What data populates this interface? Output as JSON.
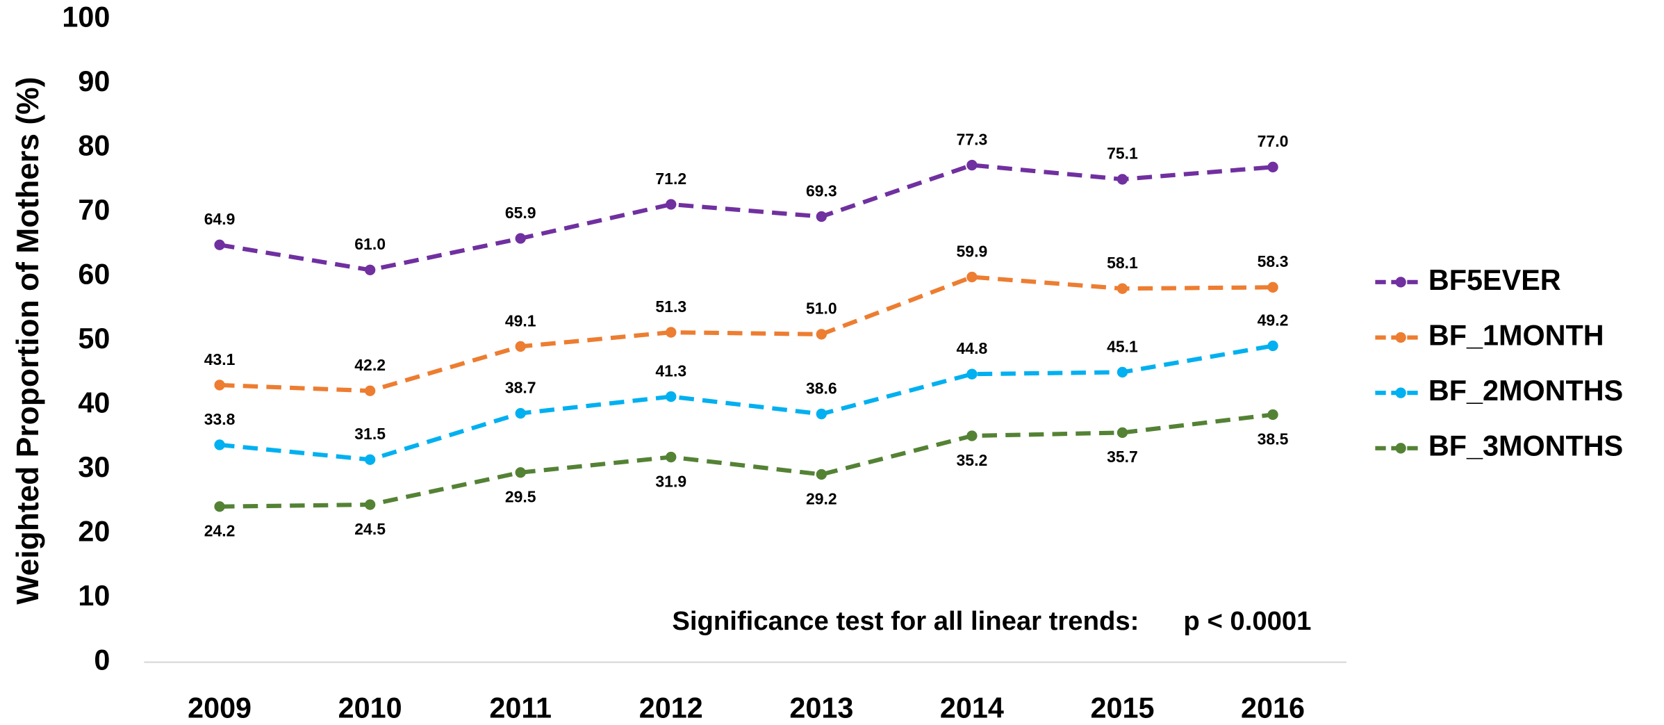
{
  "chart_data": {
    "type": "line",
    "ylabel": "Weighted Proportion of Mothers (%)",
    "categories": [
      "2009",
      "2010",
      "2011",
      "2012",
      "2013",
      "2014",
      "2015",
      "2016"
    ],
    "series": [
      {
        "name": "BF5EVER",
        "color": "#7030a0",
        "label_position": "above",
        "values": [
          64.9,
          61.0,
          65.9,
          71.2,
          69.3,
          77.3,
          75.1,
          77.0
        ],
        "value_labels": [
          "64.9",
          "61.0",
          "65.9",
          "71.2",
          "69.3",
          "77.3",
          "75.1",
          "77.0"
        ]
      },
      {
        "name": "BF_1MONTH",
        "color": "#ed7d31",
        "label_position": "above",
        "values": [
          43.1,
          42.2,
          49.1,
          51.3,
          51.0,
          59.9,
          58.1,
          58.3
        ],
        "value_labels": [
          "43.1",
          "42.2",
          "49.1",
          "51.3",
          "51.0",
          "59.9",
          "58.1",
          "58.3"
        ]
      },
      {
        "name": "BF_2MONTHS",
        "color": "#00b0f0",
        "label_position": "above",
        "values": [
          33.8,
          31.5,
          38.7,
          41.3,
          38.6,
          44.8,
          45.1,
          49.2
        ],
        "value_labels": [
          "33.8",
          "31.5",
          "38.7",
          "41.3",
          "38.6",
          "44.8",
          "45.1",
          "49.2"
        ]
      },
      {
        "name": "BF_3MONTHS",
        "color": "#548235",
        "label_position": "below",
        "values": [
          24.2,
          24.5,
          29.5,
          31.9,
          29.2,
          35.2,
          35.7,
          38.5
        ],
        "value_labels": [
          "24.2",
          "24.5",
          "29.5",
          "31.9",
          "29.2",
          "35.2",
          "35.7",
          "38.5"
        ]
      }
    ],
    "ylim": [
      0,
      100
    ],
    "yticks": [
      0,
      10,
      20,
      30,
      40,
      50,
      60,
      70,
      80,
      90,
      100
    ],
    "grid": false,
    "legend": "right",
    "annotations": [
      "Significance test for all linear trends:",
      "p < 0.0001"
    ]
  }
}
